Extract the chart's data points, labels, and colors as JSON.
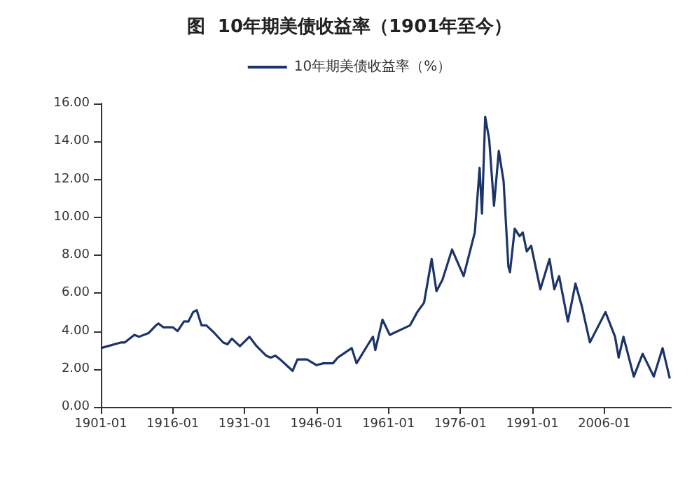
{
  "chart_data": {
    "type": "line",
    "title": "图  10年期美债收益率（1901年至今）",
    "x": [
      "1901-01",
      "1905-04",
      "1906-01",
      "1908-01",
      "1909-01",
      "1911-01",
      "1912-07",
      "1913-01",
      "1914-01",
      "1916-01",
      "1917-01",
      "1918-05",
      "1919-04",
      "1920-04",
      "1921-01",
      "1922-01",
      "1923-01",
      "1924-09",
      "1926-07",
      "1927-06",
      "1928-05",
      "1930-01",
      "1932-01",
      "1933-07",
      "1935-07",
      "1936-06",
      "1937-06",
      "1938-06",
      "1941-01",
      "1942-01",
      "1944-01",
      "1946-01",
      "1947-06",
      "1949-06",
      "1950-06",
      "1953-05",
      "1954-05",
      "1956-10",
      "1957-10",
      "1958-04",
      "1959-10",
      "1961-04",
      "1965-07",
      "1967-01",
      "1968-06",
      "1970-01",
      "1971-01",
      "1972-04",
      "1974-04",
      "1976-09",
      "1979-01",
      "1980-01",
      "1980-07",
      "1981-03",
      "1982-01",
      "1983-01",
      "1984-01",
      "1985-01",
      "1986-01",
      "1986-05",
      "1987-05",
      "1988-05",
      "1989-01",
      "1989-11",
      "1990-10",
      "1992-09",
      "1994-08",
      "1995-08",
      "1996-08",
      "1998-06",
      "2000-01",
      "2001-05",
      "2003-01",
      "2004-11",
      "2006-04",
      "2008-04",
      "2009-01",
      "2010-01",
      "2012-03",
      "2014-01",
      "2016-05",
      "2018-03",
      "2019-09"
    ],
    "series": [
      {
        "name": "10年期美债收益率（%）",
        "color": "#1c3468",
        "values": [
          3.1,
          3.4,
          3.4,
          3.8,
          3.7,
          3.9,
          4.3,
          4.4,
          4.2,
          4.2,
          4.0,
          4.5,
          4.5,
          5.0,
          5.1,
          4.3,
          4.3,
          3.9,
          3.4,
          3.3,
          3.6,
          3.2,
          3.7,
          3.2,
          2.7,
          2.6,
          2.7,
          2.5,
          1.9,
          2.5,
          2.5,
          2.2,
          2.3,
          2.3,
          2.6,
          3.1,
          2.3,
          3.3,
          3.7,
          3.0,
          4.6,
          3.8,
          4.3,
          5.0,
          5.5,
          7.8,
          6.1,
          6.7,
          8.3,
          6.9,
          9.2,
          12.6,
          10.2,
          15.3,
          14.1,
          10.6,
          13.5,
          11.9,
          7.4,
          7.1,
          9.4,
          9.0,
          9.2,
          8.2,
          8.5,
          6.2,
          7.8,
          6.2,
          6.9,
          4.5,
          6.5,
          5.3,
          3.4,
          4.3,
          5.0,
          3.7,
          2.6,
          3.7,
          1.6,
          2.8,
          1.6,
          3.1,
          1.5
        ]
      }
    ],
    "xlim": [
      "1901-01",
      "2019-12"
    ],
    "xticks": [
      {
        "value": "1901-01",
        "label": "1901-01"
      },
      {
        "value": "1916-01",
        "label": "1916-01"
      },
      {
        "value": "1931-01",
        "label": "1931-01"
      },
      {
        "value": "1946-01",
        "label": "1946-01"
      },
      {
        "value": "1961-01",
        "label": "1961-01"
      },
      {
        "value": "1976-01",
        "label": "1976-01"
      },
      {
        "value": "1991-01",
        "label": "1991-01"
      },
      {
        "value": "2006-01",
        "label": "2006-01"
      }
    ],
    "ylim": [
      0,
      16
    ],
    "yticks": [
      {
        "value": 0,
        "label": "0.00"
      },
      {
        "value": 2,
        "label": "2.00"
      },
      {
        "value": 4,
        "label": "4.00"
      },
      {
        "value": 6,
        "label": "6.00"
      },
      {
        "value": 8,
        "label": "8.00"
      },
      {
        "value": 10,
        "label": "10.00"
      },
      {
        "value": 12,
        "label": "12.00"
      },
      {
        "value": 14,
        "label": "14.00"
      },
      {
        "value": 16,
        "label": "16.00"
      }
    ],
    "grid": false,
    "legend": "top",
    "marker": "none",
    "line_style": "solid"
  }
}
